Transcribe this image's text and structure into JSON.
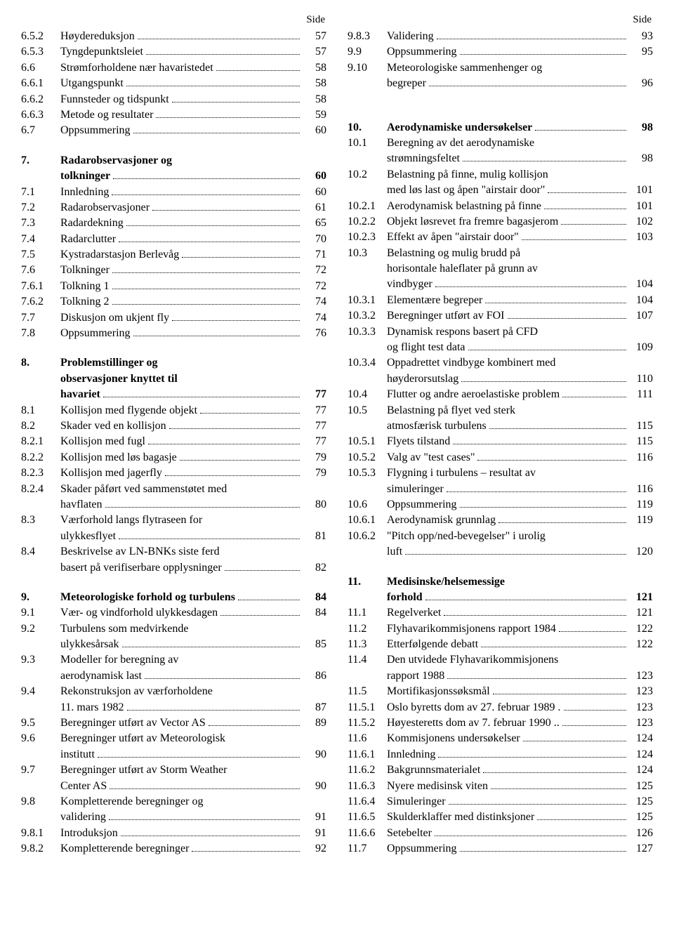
{
  "side_label": "Side",
  "left": [
    {
      "n": "6.5.2",
      "t": "Høydereduksjon",
      "p": "57"
    },
    {
      "n": "6.5.3",
      "t": "Tyngdepunktsleiet",
      "p": "57"
    },
    {
      "n": "6.6",
      "t": "Strømforholdene nær havaristedet",
      "p": "58"
    },
    {
      "n": "6.6.1",
      "t": "Utgangspunkt",
      "p": "58"
    },
    {
      "n": "6.6.2",
      "t": "Funnsteder og tidspunkt",
      "p": "58"
    },
    {
      "n": "6.6.3",
      "t": "Metode og resultater",
      "p": "59"
    },
    {
      "n": "6.7",
      "t": "Oppsummering",
      "p": "60"
    },
    {
      "spacer": true
    },
    {
      "n": "7.",
      "t": "Radarobservasjoner og",
      "wrap": "tolkninger",
      "p": "60",
      "bold": true
    },
    {
      "n": "7.1",
      "t": "Innledning",
      "p": "60"
    },
    {
      "n": "7.2",
      "t": "Radarobservasjoner",
      "p": "61"
    },
    {
      "n": "7.3",
      "t": "Radardekning",
      "p": "65"
    },
    {
      "n": "7.4",
      "t": "Radarclutter",
      "p": "70"
    },
    {
      "n": "7.5",
      "t": "Kystradarstasjon Berlevåg",
      "p": "71"
    },
    {
      "n": "7.6",
      "t": "Tolkninger",
      "p": "72"
    },
    {
      "n": "7.6.1",
      "t": "Tolkning 1",
      "p": "72"
    },
    {
      "n": "7.6.2",
      "t": "Tolkning 2",
      "p": "74"
    },
    {
      "n": "7.7",
      "t": "Diskusjon om ukjent fly",
      "p": "74"
    },
    {
      "n": "7.8",
      "t": "Oppsummering",
      "p": "76"
    },
    {
      "spacer": true
    },
    {
      "n": "8.",
      "t": "Problemstillinger og",
      "wrap": "observasjoner knyttet til",
      "wrap2": "havariet",
      "p": "77",
      "bold": true
    },
    {
      "n": "8.1",
      "t": "Kollisjon med flygende objekt",
      "p": "77"
    },
    {
      "n": "8.2",
      "t": "Skader ved en kollisjon",
      "p": "77"
    },
    {
      "n": "8.2.1",
      "t": "Kollisjon med fugl",
      "p": "77"
    },
    {
      "n": "8.2.2",
      "t": "Kollisjon med løs bagasje",
      "p": "79"
    },
    {
      "n": "8.2.3",
      "t": "Kollisjon med jagerfly",
      "p": "79"
    },
    {
      "n": "8.2.4",
      "t": "Skader påført ved sammenstøtet med",
      "wrap": "havflaten",
      "p": "80"
    },
    {
      "n": "8.3",
      "t": "Værforhold langs flytraseen for",
      "wrap": "ulykkesflyet",
      "p": "81"
    },
    {
      "n": "8.4",
      "t": "Beskrivelse av LN-BNKs siste ferd",
      "wrap": "basert på verifiserbare opplysninger",
      "p": "82"
    },
    {
      "spacer": true
    },
    {
      "n": "9.",
      "t": "Meteorologiske forhold og turbulens",
      "p": "84",
      "bold": true
    },
    {
      "n": "9.1",
      "t": "Vær- og vindforhold ulykkesdagen",
      "p": "84"
    },
    {
      "n": "9.2",
      "t": "Turbulens som medvirkende",
      "wrap": "ulykkesårsak",
      "p": "85"
    },
    {
      "n": "9.3",
      "t": "Modeller for beregning av",
      "wrap": "aerodynamisk last",
      "p": "86"
    },
    {
      "n": "9.4",
      "t": "Rekonstruksjon av værforholdene",
      "wrap": "11. mars 1982",
      "p": "87"
    },
    {
      "n": "9.5",
      "t": "Beregninger utført av Vector AS",
      "p": "89"
    },
    {
      "n": "9.6",
      "t": "Beregninger utført av Meteorologisk",
      "wrap": "institutt",
      "p": "90"
    },
    {
      "n": "9.7",
      "t": "Beregninger utført av Storm Weather",
      "wrap": "Center AS",
      "p": "90"
    },
    {
      "n": "9.8",
      "t": "Kompletterende beregninger og",
      "wrap": "validering",
      "p": "91"
    },
    {
      "n": "9.8.1",
      "t": "Introduksjon",
      "p": "91"
    },
    {
      "n": "9.8.2",
      "t": "Kompletterende beregninger",
      "p": "92"
    }
  ],
  "right": [
    {
      "n": "9.8.3",
      "t": "Validering",
      "p": "93"
    },
    {
      "n": "9.9",
      "t": "Oppsummering",
      "p": "95"
    },
    {
      "n": "9.10",
      "t": "Meteorologiske sammenhenger og",
      "wrap": "begreper",
      "p": "96"
    },
    {
      "spacer": true
    },
    {
      "spacer": true
    },
    {
      "n": "10.",
      "t": "Aerodynamiske undersøkelser",
      "p": "98",
      "bold": true
    },
    {
      "n": "10.1",
      "t": "Beregning av det aerodynamiske",
      "wrap": "strømningsfeltet",
      "p": "98"
    },
    {
      "n": "10.2",
      "t": "Belastning på finne, mulig kollisjon",
      "wrap": "med løs last og åpen \"airstair door\"",
      "p": "101"
    },
    {
      "n": "10.2.1",
      "t": "Aerodynamisk belastning på finne",
      "p": "101"
    },
    {
      "n": "10.2.2",
      "t": "Objekt løsrevet fra fremre bagasjerom",
      "p": "102"
    },
    {
      "n": "10.2.3",
      "t": "Effekt av åpen \"airstair door\"",
      "p": "103"
    },
    {
      "n": "10.3",
      "t": "Belastning og mulig brudd på",
      "wrap": "horisontale haleflater på grunn av",
      "wrap2": "vindbyger",
      "p": "104"
    },
    {
      "n": "10.3.1",
      "t": "Elementære begreper",
      "p": "104"
    },
    {
      "n": "10.3.2",
      "t": "Beregninger utført av FOI",
      "p": "107"
    },
    {
      "n": "10.3.3",
      "t": "Dynamisk respons basert på CFD",
      "wrap": "og flight test data",
      "p": "109"
    },
    {
      "n": "10.3.4",
      "t": "Oppadrettet vindbyge kombinert med",
      "wrap": "høyderorsutslag",
      "p": "110"
    },
    {
      "n": "10.4",
      "t": "Flutter og andre aeroelastiske problem",
      "p": "111"
    },
    {
      "n": "10.5",
      "t": "Belastning på flyet ved sterk",
      "wrap": "atmosfærisk turbulens",
      "p": "115"
    },
    {
      "n": "10.5.1",
      "t": "Flyets tilstand",
      "p": "115"
    },
    {
      "n": "10.5.2",
      "t": "Valg av \"test cases\"",
      "p": "116"
    },
    {
      "n": "10.5.3",
      "t": "Flygning i turbulens – resultat av",
      "wrap": "simuleringer",
      "p": "116"
    },
    {
      "n": "10.6",
      "t": "Oppsummering",
      "p": "119"
    },
    {
      "n": "10.6.1",
      "t": "Aerodynamisk grunnlag",
      "p": "119"
    },
    {
      "n": "10.6.2",
      "t": "\"Pitch opp/ned-bevegelser\" i urolig",
      "wrap": "luft",
      "p": "120"
    },
    {
      "spacer": true
    },
    {
      "n": "11.",
      "t": "Medisinske/helsemessige",
      "wrap": "forhold",
      "p": "121",
      "bold": true
    },
    {
      "n": "11.1",
      "t": "Regelverket",
      "p": "121"
    },
    {
      "n": "11.2",
      "t": "Flyhavarikommisjonens rapport 1984",
      "p": "122"
    },
    {
      "n": "11.3",
      "t": "Etterfølgende debatt",
      "p": "122"
    },
    {
      "n": "11.4",
      "t": "Den utvidede Flyhavarikommisjonens",
      "wrap": "rapport 1988",
      "p": "123"
    },
    {
      "n": "11.5",
      "t": "Mortifikasjonssøksmål",
      "p": "123"
    },
    {
      "n": "11.5.1",
      "t": "Oslo byretts dom av 27. februar 1989 .",
      "p": "123",
      "nodots": true
    },
    {
      "n": "11.5.2",
      "t": "Høyesteretts dom av 7. februar 1990 ..",
      "p": "123",
      "nodots": true
    },
    {
      "n": "11.6",
      "t": "Kommisjonens undersøkelser",
      "p": "124"
    },
    {
      "n": "11.6.1",
      "t": "Innledning",
      "p": "124"
    },
    {
      "n": "11.6.2",
      "t": "Bakgrunnsmaterialet",
      "p": "124"
    },
    {
      "n": "11.6.3",
      "t": "Nyere medisinsk viten",
      "p": "125"
    },
    {
      "n": "11.6.4",
      "t": "Simuleringer",
      "p": "125"
    },
    {
      "n": "11.6.5",
      "t": "Skulderklaffer med distinksjoner",
      "p": "125"
    },
    {
      "n": "11.6.6",
      "t": "Setebelter",
      "p": "126"
    },
    {
      "n": "11.7",
      "t": "Oppsummering",
      "p": "127"
    }
  ]
}
